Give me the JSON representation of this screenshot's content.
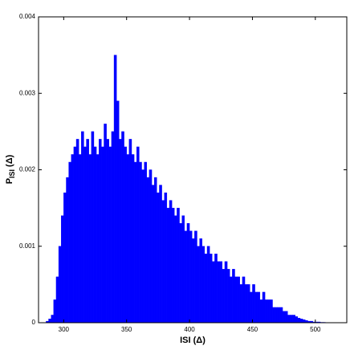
{
  "chart_data": {
    "type": "histogram",
    "xlabel": "ISI (Δ)",
    "ylabel": {
      "main": "P",
      "sub": "ISI",
      "rest": "(Δ)"
    },
    "color": "#0000ff",
    "bins": [
      286,
      288,
      290,
      292,
      294,
      296,
      298,
      300,
      302,
      304,
      306,
      308,
      310,
      312,
      314,
      316,
      318,
      320,
      322,
      324,
      326,
      328,
      330,
      332,
      334,
      336,
      338,
      340,
      342,
      344,
      346,
      348,
      350,
      352,
      354,
      356,
      358,
      360,
      362,
      364,
      366,
      368,
      370,
      372,
      374,
      376,
      378,
      380,
      382,
      384,
      386,
      388,
      390,
      392,
      394,
      396,
      398,
      400,
      402,
      404,
      406,
      408,
      410,
      412,
      414,
      416,
      418,
      420,
      422,
      424,
      426,
      428,
      430,
      432,
      434,
      436,
      438,
      440,
      442,
      444,
      446,
      448,
      450,
      452,
      454,
      456,
      458,
      460,
      462,
      464,
      466,
      468,
      470,
      472,
      474,
      476,
      478,
      480,
      482,
      484,
      486,
      488,
      490,
      492,
      494,
      496,
      498,
      500,
      502,
      504,
      506,
      508,
      510
    ],
    "counts": [
      2e-05,
      5e-05,
      0.0001,
      0.0003,
      0.0006,
      0.001,
      0.0014,
      0.0017,
      0.0019,
      0.0021,
      0.0022,
      0.0023,
      0.0024,
      0.0022,
      0.0025,
      0.0023,
      0.0024,
      0.0022,
      0.0025,
      0.0023,
      0.0022,
      0.0024,
      0.0023,
      0.0026,
      0.0024,
      0.0023,
      0.0025,
      0.0035,
      0.0029,
      0.0024,
      0.0025,
      0.0023,
      0.0022,
      0.0024,
      0.0022,
      0.0021,
      0.0023,
      0.0021,
      0.002,
      0.0021,
      0.0019,
      0.002,
      0.0018,
      0.0019,
      0.0017,
      0.0018,
      0.0016,
      0.0017,
      0.0015,
      0.0016,
      0.0015,
      0.0014,
      0.0015,
      0.0013,
      0.0014,
      0.0012,
      0.0013,
      0.0012,
      0.0011,
      0.0012,
      0.001,
      0.0011,
      0.001,
      0.0009,
      0.001,
      0.0009,
      0.0008,
      0.0009,
      0.0008,
      0.0008,
      0.0007,
      0.0008,
      0.0007,
      0.0006,
      0.0007,
      0.0006,
      0.0006,
      0.0005,
      0.0006,
      0.0005,
      0.0005,
      0.0004,
      0.0005,
      0.0004,
      0.0004,
      0.0003,
      0.0004,
      0.0003,
      0.0003,
      0.0003,
      0.0002,
      0.0002,
      0.0002,
      0.0002,
      0.00015,
      0.00015,
      0.0001,
      0.0001,
      0.0001,
      8e-05,
      6e-05,
      5e-05,
      4e-05,
      3e-05,
      2e-05,
      2e-05,
      1e-05,
      1e-05,
      1e-05,
      5e-06,
      5e-06,
      2e-06
    ],
    "xlim": [
      280,
      525
    ],
    "xticks": [
      300,
      350,
      400,
      450,
      500
    ],
    "ylim": [
      0,
      0.004
    ],
    "yticks": [
      0,
      0.001,
      0.002,
      0.003,
      0.004
    ]
  }
}
